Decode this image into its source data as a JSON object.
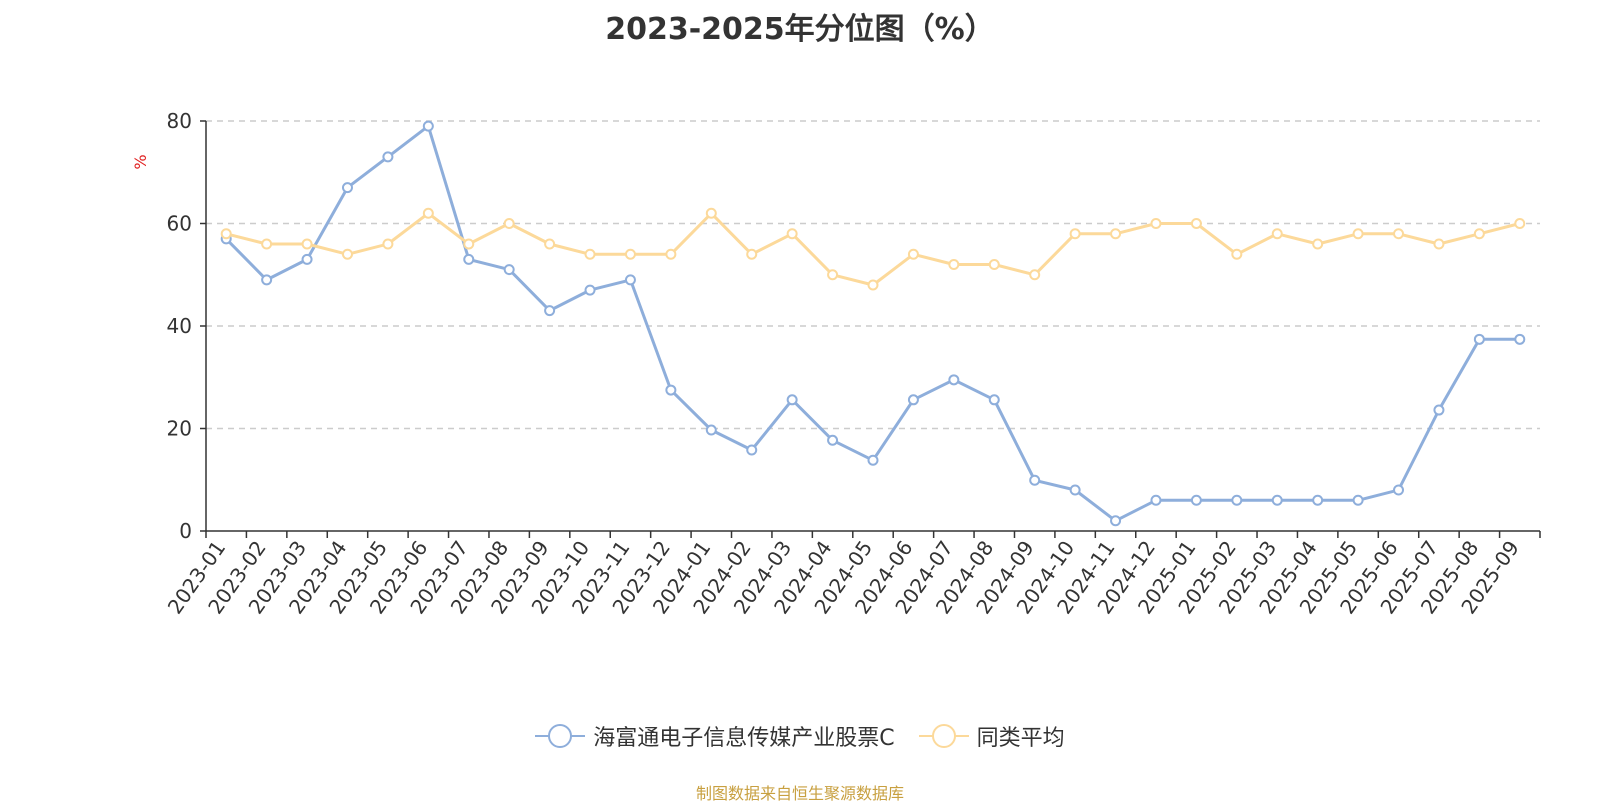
{
  "chart_data": {
    "type": "line",
    "title": "2023-2025年分位图（%）",
    "ylabel": "%",
    "ylim": [
      0,
      80
    ],
    "yticks": [
      0,
      20,
      40,
      60,
      80
    ],
    "grid": "horizontal dashed",
    "legend_position": "bottom",
    "categories": [
      "2023-01",
      "2023-02",
      "2023-03",
      "2023-04",
      "2023-05",
      "2023-06",
      "2023-07",
      "2023-08",
      "2023-09",
      "2023-10",
      "2023-11",
      "2023-12",
      "2024-01",
      "2024-02",
      "2024-03",
      "2024-04",
      "2024-05",
      "2024-06",
      "2024-07",
      "2024-08",
      "2024-09",
      "2024-10",
      "2024-11",
      "2024-12",
      "2025-01",
      "2025-02",
      "2025-03",
      "2025-04",
      "2025-05",
      "2025-06",
      "2025-07",
      "2025-08",
      "2025-09"
    ],
    "series": [
      {
        "name": "海富通电子信息传媒产业股票C",
        "color": "#8eaedb",
        "values": [
          57,
          49,
          53,
          67,
          73,
          79,
          53,
          51,
          43,
          47,
          49,
          27.5,
          19.7,
          15.8,
          25.6,
          17.7,
          13.8,
          25.6,
          29.5,
          25.6,
          9.9,
          8,
          2,
          6,
          6,
          6,
          6,
          6,
          6,
          8,
          23.6,
          37.4,
          37.4
        ]
      },
      {
        "name": "同类平均",
        "color": "#fcd99a",
        "values": [
          58,
          56,
          56,
          54,
          56,
          62,
          56,
          60,
          56,
          54,
          54,
          54,
          62,
          54,
          58,
          50,
          48,
          54,
          52,
          52,
          50,
          58,
          58,
          60,
          60,
          54,
          58,
          56,
          58,
          58,
          56,
          58,
          60
        ]
      }
    ]
  },
  "source": "制图数据来自恒生聚源数据库"
}
